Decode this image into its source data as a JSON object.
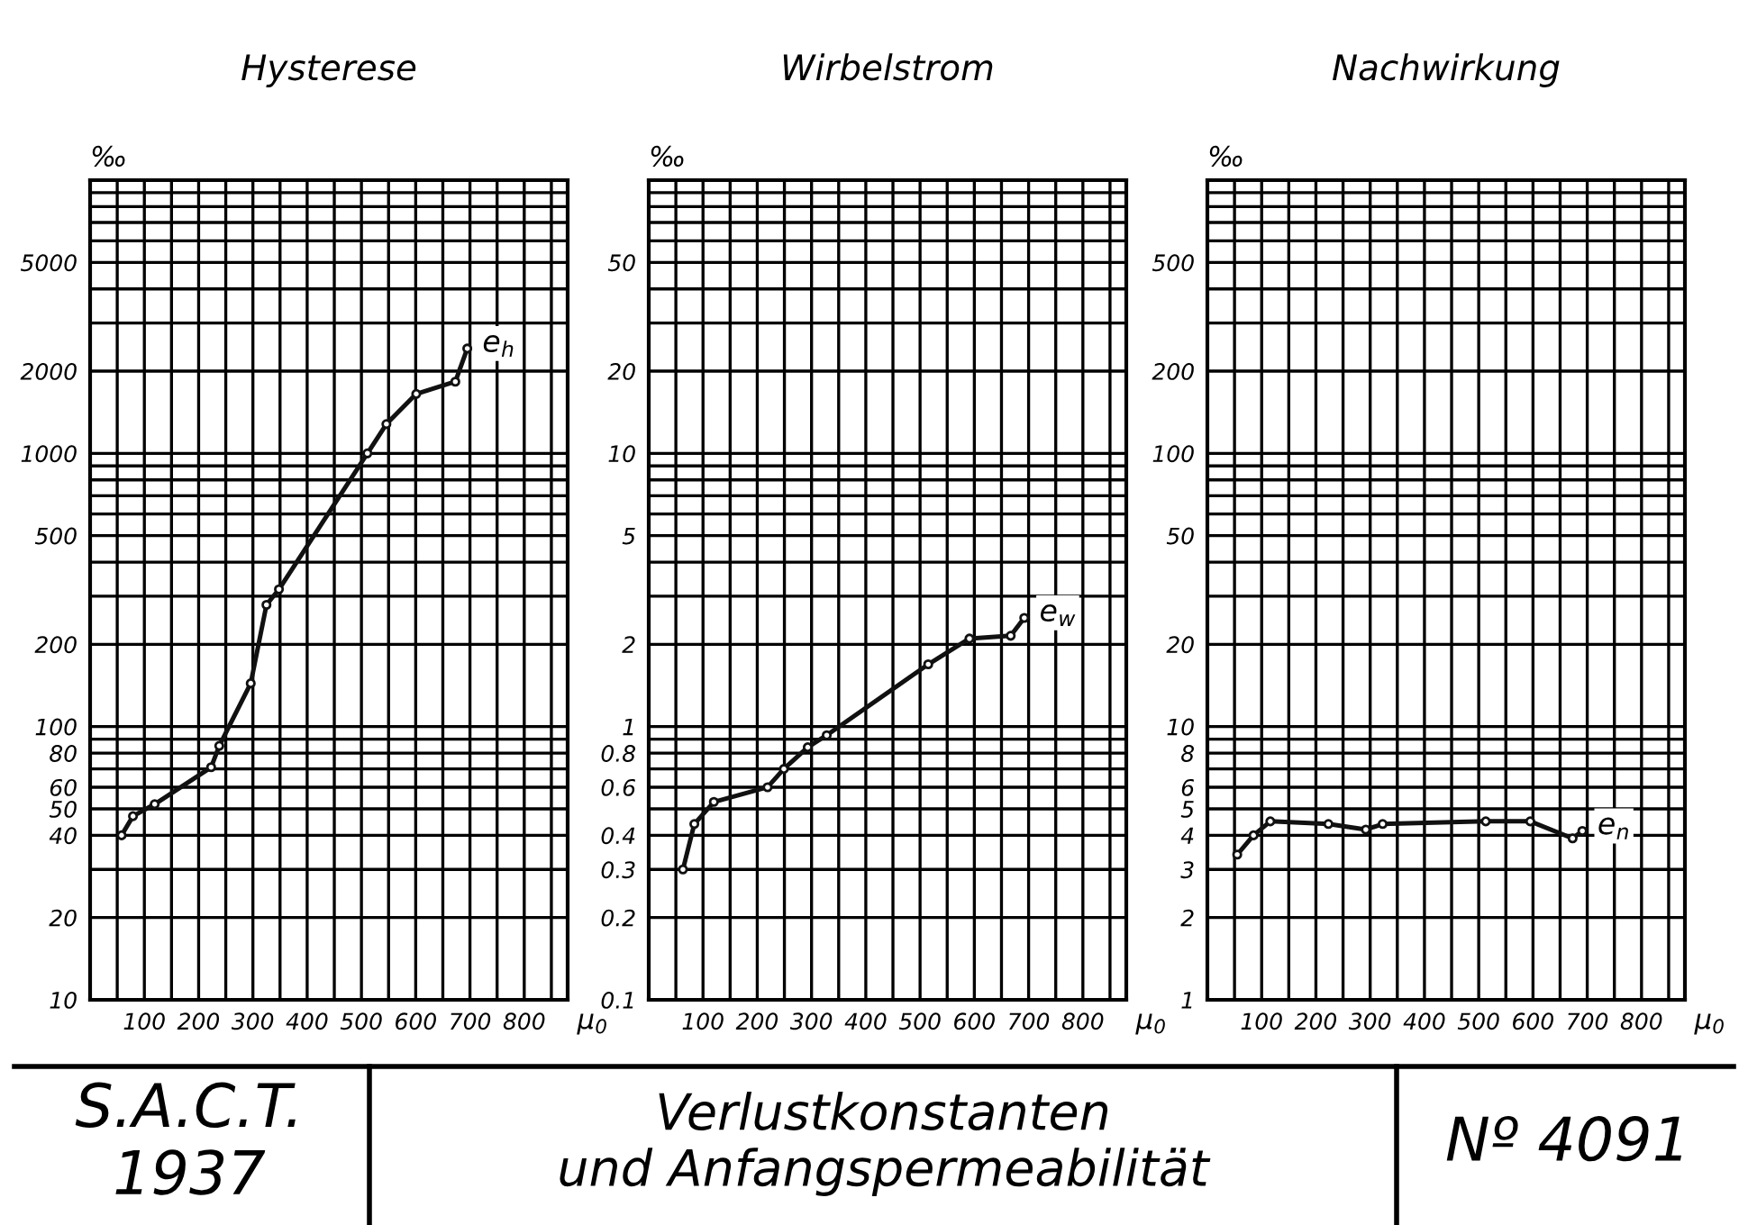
{
  "chart_data": [
    {
      "type": "line",
      "title": "Hysterese",
      "ylabel": "‰",
      "xlabel": "μ$_{0}$",
      "log": "y",
      "grid": true,
      "marker": "circle",
      "line_style": "solid",
      "xlim": [
        0,
        880
      ],
      "ylim": [
        10,
        10000
      ],
      "xticks": [
        {
          "value": 50,
          "label": null
        },
        100,
        {
          "value": 150,
          "label": null
        },
        200,
        {
          "value": 250,
          "label": null
        },
        300,
        {
          "value": 350,
          "label": null
        },
        400,
        {
          "value": 450,
          "label": null
        },
        500,
        {
          "value": 550,
          "label": null
        },
        600,
        {
          "value": 650,
          "label": null
        },
        700,
        {
          "value": 750,
          "label": null
        },
        800,
        {
          "value": 850,
          "label": null
        }
      ],
      "yticks": [
        10,
        20,
        {
          "value": 30,
          "label": null
        },
        40,
        50,
        60,
        {
          "value": 70,
          "label": null
        },
        80,
        {
          "value": 90,
          "label": null
        },
        100,
        200,
        {
          "value": 300,
          "label": null
        },
        {
          "value": 400,
          "label": null
        },
        500,
        {
          "value": 600,
          "label": null
        },
        {
          "value": 700,
          "label": null
        },
        {
          "value": 800,
          "label": null
        },
        {
          "value": 900,
          "label": null
        },
        1000,
        2000,
        {
          "value": 3000,
          "label": null
        },
        {
          "value": 4000,
          "label": null
        },
        5000,
        {
          "value": 6000,
          "label": null
        },
        {
          "value": 7000,
          "label": null
        },
        {
          "value": 8000,
          "label": null
        },
        {
          "value": 9000,
          "label": null
        }
      ],
      "series": [
        {
          "color": "#111111",
          "x": [
            58,
            79,
            119,
            223,
            238,
            296,
            325,
            348,
            511,
            546,
            601,
            673,
            695
          ],
          "values": [
            40,
            47,
            52,
            71,
            85,
            144,
            279,
            318,
            1000,
            1280,
            1650,
            1830,
            2420
          ]
        }
      ],
      "annotations": [
        {
          "text": "e$_{h}$",
          "x": 695,
          "y": 2420
        }
      ]
    },
    {
      "type": "line",
      "title": "Wirbelstrom",
      "ylabel": "‰",
      "xlabel": "μ$_{0}$",
      "log": "y",
      "grid": true,
      "marker": "circle",
      "line_style": "solid",
      "xlim": [
        0,
        880
      ],
      "ylim": [
        0.1,
        100
      ],
      "xticks": [
        {
          "value": 50,
          "label": null
        },
        100,
        {
          "value": 150,
          "label": null
        },
        200,
        {
          "value": 250,
          "label": null
        },
        300,
        {
          "value": 350,
          "label": null
        },
        400,
        {
          "value": 450,
          "label": null
        },
        500,
        {
          "value": 550,
          "label": null
        },
        600,
        {
          "value": 650,
          "label": null
        },
        700,
        {
          "value": 750,
          "label": null
        },
        800,
        {
          "value": 850,
          "label": null
        }
      ],
      "yticks": [
        0.1,
        0.2,
        0.3,
        0.4,
        {
          "value": 0.5,
          "label": null
        },
        0.6,
        {
          "value": 0.7,
          "label": null
        },
        0.8,
        {
          "value": 0.9,
          "label": null
        },
        1,
        2,
        {
          "value": 3,
          "label": null
        },
        {
          "value": 4,
          "label": null
        },
        5,
        {
          "value": 6,
          "label": null
        },
        {
          "value": 7,
          "label": null
        },
        {
          "value": 8,
          "label": null
        },
        {
          "value": 9,
          "label": null
        },
        10,
        20,
        {
          "value": 30,
          "label": null
        },
        {
          "value": 40,
          "label": null
        },
        50,
        {
          "value": 60,
          "label": null
        },
        {
          "value": 70,
          "label": null
        },
        {
          "value": 80,
          "label": null
        },
        {
          "value": 90,
          "label": null
        }
      ],
      "series": [
        {
          "color": "#111111",
          "x": [
            63,
            84,
            120,
            219,
            249,
            293,
            328,
            515,
            591,
            667,
            692
          ],
          "values": [
            0.3,
            0.44,
            0.53,
            0.6,
            0.7,
            0.84,
            0.93,
            1.69,
            2.1,
            2.15,
            2.5
          ]
        }
      ],
      "annotations": [
        {
          "text": "e$_{w}$",
          "x": 692,
          "y": 2.5
        }
      ]
    },
    {
      "type": "line",
      "title": "Nachwirkung",
      "ylabel": "‰",
      "xlabel": "μ$_{0}$",
      "log": "y",
      "grid": true,
      "marker": "circle",
      "line_style": "solid",
      "xlim": [
        0,
        880
      ],
      "ylim": [
        1,
        1000
      ],
      "xticks": [
        {
          "value": 50,
          "label": null
        },
        100,
        {
          "value": 150,
          "label": null
        },
        200,
        {
          "value": 250,
          "label": null
        },
        300,
        {
          "value": 350,
          "label": null
        },
        400,
        {
          "value": 450,
          "label": null
        },
        500,
        {
          "value": 550,
          "label": null
        },
        600,
        {
          "value": 650,
          "label": null
        },
        700,
        {
          "value": 750,
          "label": null
        },
        800,
        {
          "value": 850,
          "label": null
        }
      ],
      "yticks": [
        1,
        2,
        3,
        4,
        5,
        6,
        {
          "value": 7,
          "label": null
        },
        8,
        {
          "value": 9,
          "label": null
        },
        10,
        20,
        {
          "value": 30,
          "label": null
        },
        {
          "value": 40,
          "label": null
        },
        50,
        {
          "value": 60,
          "label": null
        },
        {
          "value": 70,
          "label": null
        },
        {
          "value": 80,
          "label": null
        },
        {
          "value": 90,
          "label": null
        },
        100,
        200,
        {
          "value": 300,
          "label": null
        },
        {
          "value": 400,
          "label": null
        },
        500,
        {
          "value": 600,
          "label": null
        },
        {
          "value": 700,
          "label": null
        },
        {
          "value": 800,
          "label": null
        },
        {
          "value": 900,
          "label": null
        }
      ],
      "series": [
        {
          "color": "#111111",
          "x": [
            55,
            85,
            116,
            223,
            292,
            323,
            513,
            595,
            673,
            691
          ],
          "values": [
            3.4,
            4.0,
            4.5,
            4.4,
            4.2,
            4.4,
            4.5,
            4.5,
            3.9,
            4.15
          ]
        }
      ],
      "annotations": [
        {
          "text": "e$_{n}$",
          "x": 691,
          "y": 4.15
        }
      ]
    },
    {
      "type": "other",
      "title": "Verlustkonstanten\nund Anfangspermeabilität",
      "annotations": [
        "S.A.C.T.\n1937",
        "Nº 4091"
      ]
    }
  ]
}
